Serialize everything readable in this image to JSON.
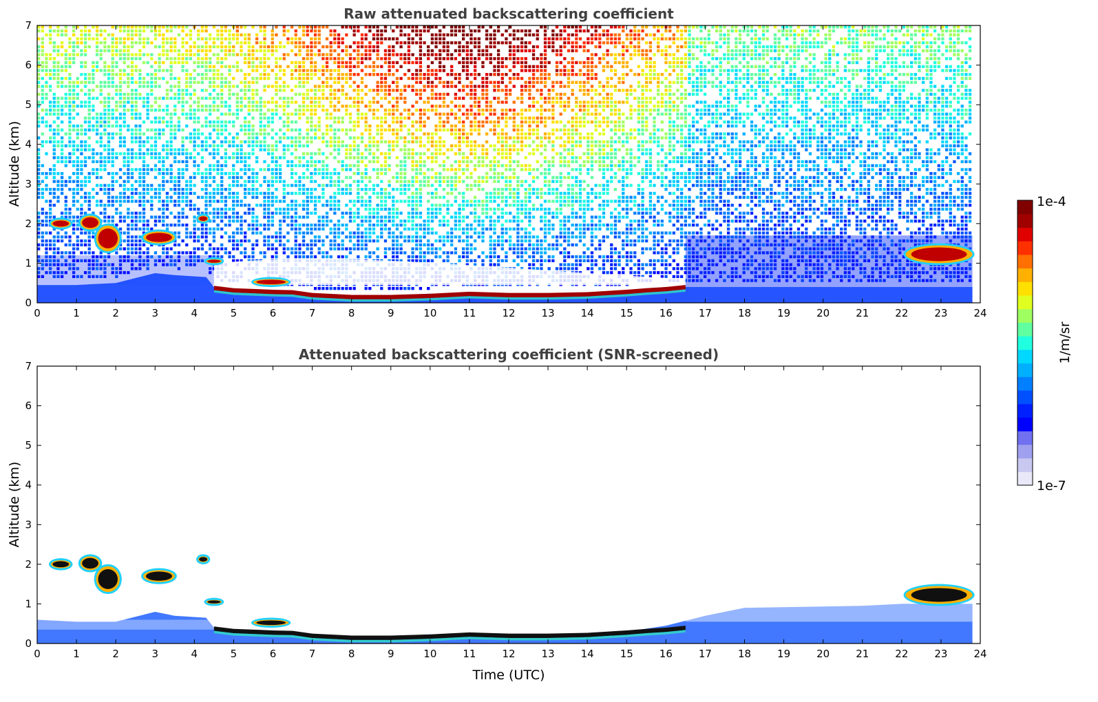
{
  "chart_data": [
    {
      "type": "heatmap",
      "title": "Raw attenuated backscattering coefficient",
      "xlabel": "",
      "ylabel": "Altitude (km)",
      "xlim": [
        0,
        24
      ],
      "ylim": [
        0,
        7
      ],
      "xticks": [
        0,
        1,
        2,
        3,
        4,
        5,
        6,
        7,
        8,
        9,
        10,
        11,
        12,
        13,
        14,
        15,
        16,
        17,
        18,
        19,
        20,
        21,
        22,
        23,
        24
      ],
      "yticks": [
        0,
        1,
        2,
        3,
        4,
        5,
        6,
        7
      ],
      "noise": "dense",
      "boundary_layer": [
        [
          0,
          0.45
        ],
        [
          1,
          0.45
        ],
        [
          2,
          0.5
        ],
        [
          3,
          0.75
        ],
        [
          3.5,
          0.7
        ],
        [
          4.3,
          0.65
        ],
        [
          4.5,
          0.4
        ],
        [
          5,
          0.35
        ],
        [
          6,
          0.3
        ],
        [
          7,
          0.2
        ],
        [
          8,
          0.15
        ],
        [
          10,
          0.2
        ],
        [
          11,
          0.25
        ],
        [
          12,
          0.2
        ],
        [
          13,
          0.2
        ],
        [
          14,
          0.25
        ],
        [
          15,
          0.3
        ],
        [
          16,
          0.4
        ],
        [
          16.5,
          0.4
        ],
        [
          23.8,
          0.4
        ]
      ],
      "aerosol_layer": [
        [
          4.5,
          0.38
        ],
        [
          5,
          0.32
        ],
        [
          6,
          0.28
        ],
        [
          6.5,
          0.27
        ],
        [
          7,
          0.2
        ],
        [
          8,
          0.15
        ],
        [
          9,
          0.15
        ],
        [
          10,
          0.18
        ],
        [
          11,
          0.23
        ],
        [
          12,
          0.2
        ],
        [
          13,
          0.2
        ],
        [
          14,
          0.22
        ],
        [
          15,
          0.28
        ],
        [
          15.5,
          0.32
        ],
        [
          16,
          0.35
        ],
        [
          16.5,
          0.4
        ]
      ],
      "cloud_patches": [
        {
          "x0": 0.35,
          "x1": 0.85,
          "y0": 1.9,
          "y1": 2.1
        },
        {
          "x0": 1.1,
          "x1": 1.6,
          "y0": 1.85,
          "y1": 2.2
        },
        {
          "x0": 1.5,
          "x1": 2.1,
          "y0": 1.3,
          "y1": 1.95
        },
        {
          "x0": 2.7,
          "x1": 3.5,
          "y0": 1.5,
          "y1": 1.8
        },
        {
          "x0": 4.1,
          "x1": 4.35,
          "y0": 2.05,
          "y1": 2.2
        },
        {
          "x0": 4.3,
          "x1": 4.7,
          "y0": 1.0,
          "y1": 1.1
        },
        {
          "x0": 5.5,
          "x1": 6.4,
          "y0": 0.45,
          "y1": 0.6
        },
        {
          "x0": 22.1,
          "x1": 23.8,
          "y0": 1.0,
          "y1": 1.45
        }
      ]
    },
    {
      "type": "heatmap",
      "title": "Attenuated backscattering coefficient (SNR-screened)",
      "xlabel": "Time (UTC)",
      "ylabel": "Altitude (km)",
      "xlim": [
        0,
        24
      ],
      "ylim": [
        0,
        7
      ],
      "xticks": [
        0,
        1,
        2,
        3,
        4,
        5,
        6,
        7,
        8,
        9,
        10,
        11,
        12,
        13,
        14,
        15,
        16,
        17,
        18,
        19,
        20,
        21,
        22,
        23,
        24
      ],
      "yticks": [
        0,
        1,
        2,
        3,
        4,
        5,
        6,
        7
      ],
      "noise": "none",
      "boundary_layer": [
        [
          0,
          0.6
        ],
        [
          1,
          0.55
        ],
        [
          2,
          0.55
        ],
        [
          3,
          0.8
        ],
        [
          3.5,
          0.7
        ],
        [
          4.3,
          0.65
        ],
        [
          4.5,
          0.4
        ],
        [
          5,
          0.35
        ],
        [
          6,
          0.3
        ],
        [
          7,
          0.2
        ],
        [
          8,
          0.15
        ],
        [
          10,
          0.2
        ],
        [
          11,
          0.25
        ],
        [
          12,
          0.2
        ],
        [
          13,
          0.2
        ],
        [
          14,
          0.25
        ],
        [
          15,
          0.3
        ],
        [
          16,
          0.45
        ],
        [
          17,
          0.7
        ],
        [
          18,
          0.9
        ],
        [
          21,
          0.95
        ],
        [
          22,
          1.0
        ],
        [
          23.8,
          1.0
        ]
      ],
      "aerosol_layer": [
        [
          4.5,
          0.38
        ],
        [
          5,
          0.32
        ],
        [
          6,
          0.28
        ],
        [
          6.5,
          0.27
        ],
        [
          7,
          0.2
        ],
        [
          8,
          0.15
        ],
        [
          9,
          0.15
        ],
        [
          10,
          0.18
        ],
        [
          11,
          0.23
        ],
        [
          12,
          0.2
        ],
        [
          13,
          0.2
        ],
        [
          14,
          0.22
        ],
        [
          15,
          0.28
        ],
        [
          15.5,
          0.32
        ],
        [
          16,
          0.35
        ],
        [
          16.5,
          0.4
        ]
      ],
      "cloud_patches": [
        {
          "x0": 0.35,
          "x1": 0.85,
          "y0": 1.9,
          "y1": 2.1
        },
        {
          "x0": 1.1,
          "x1": 1.6,
          "y0": 1.85,
          "y1": 2.2
        },
        {
          "x0": 1.5,
          "x1": 2.1,
          "y0": 1.3,
          "y1": 1.95
        },
        {
          "x0": 2.7,
          "x1": 3.5,
          "y0": 1.55,
          "y1": 1.85
        },
        {
          "x0": 4.1,
          "x1": 4.35,
          "y0": 2.05,
          "y1": 2.2
        },
        {
          "x0": 4.3,
          "x1": 4.7,
          "y0": 1.0,
          "y1": 1.1
        },
        {
          "x0": 5.5,
          "x1": 6.4,
          "y0": 0.45,
          "y1": 0.6
        },
        {
          "x0": 22.1,
          "x1": 23.8,
          "y0": 1.0,
          "y1": 1.45
        }
      ]
    }
  ],
  "colorbar": {
    "label": "1/m/sr",
    "max_label": "1e-4",
    "min_label": "1e-7",
    "colors": [
      "#e8e8f8",
      "#c8c8f0",
      "#a0a0f0",
      "#7070f0",
      "#0000ff",
      "#0020ff",
      "#0050ff",
      "#0080ff",
      "#00b0ff",
      "#00d8ff",
      "#20ffe0",
      "#60ffa0",
      "#a0ff60",
      "#e0ff20",
      "#ffe000",
      "#ffb000",
      "#ff7000",
      "#ff3000",
      "#e00000",
      "#a00000",
      "#800000"
    ]
  }
}
